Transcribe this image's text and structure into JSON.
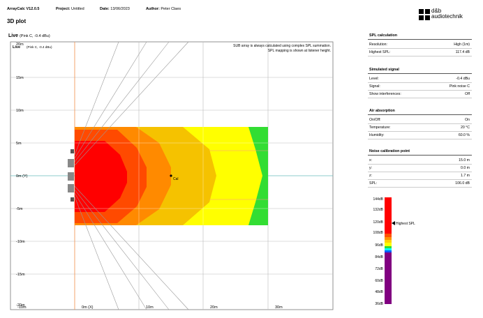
{
  "header": {
    "app_version": "ArrayCalc V12.0.5",
    "project_label": "Project:",
    "project_value": "Untitled",
    "date_label": "Date:",
    "date_value": "13/06/2023",
    "author_label": "Author:",
    "author_value": "Peter Claes"
  },
  "page_title": "3D plot",
  "logo": {
    "line1": "d&b",
    "line2": "audiotechnik"
  },
  "plot": {
    "title": "Live",
    "subtitle": "(Pink C, -0.4 dBu)",
    "inner_title": "Live",
    "inner_subtitle": "(Pink C, -0.4 dBu)",
    "note_line1": "SUB array is always calculated using complex SPL summation.",
    "note_line2": "SPL mapping is shown at listener height.",
    "y_ticks": [
      "20m",
      "15m",
      "10m",
      "5m",
      "0m (Y)",
      "-5m",
      "-10m",
      "-15m",
      "-20m"
    ],
    "x_ticks": [
      "-10m",
      "0m (X)",
      "10m",
      "20m",
      "30m"
    ],
    "cal_label": "Cal"
  },
  "spl_calculation": {
    "title": "SPL calculation",
    "rows": [
      {
        "label": "Resolution:",
        "value": "High (1m)"
      },
      {
        "label": "Highest SPL:",
        "value": "117.4 dB"
      }
    ]
  },
  "simulated_signal": {
    "title": "Simulated signal",
    "rows": [
      {
        "label": "Level:",
        "value": "-0.4 dBu"
      },
      {
        "label": "Signal:",
        "value": "Pink noise C"
      },
      {
        "label": "Show interferences:",
        "value": "Off"
      }
    ]
  },
  "air_absorption": {
    "title": "Air absorption",
    "rows": [
      {
        "label": "On/Off:",
        "value": "On"
      },
      {
        "label": "Temperature:",
        "value": "20 °C"
      },
      {
        "label": "Humidity:",
        "value": "60.0 %"
      }
    ]
  },
  "noise_calibration": {
    "title": "Noise calibration point",
    "rows": [
      {
        "label": "x:",
        "value": "15.0 m"
      },
      {
        "label": "y:",
        "value": "0.0 m"
      },
      {
        "label": "z:",
        "value": "1.7 m"
      },
      {
        "label": "SPL:",
        "value": "106.0 dB"
      }
    ]
  },
  "legend": {
    "ticks": [
      "144dB",
      "132dB",
      "120dB",
      "108dB",
      "96dB",
      "84dB",
      "72dB",
      "60dB",
      "48dB",
      "36dB"
    ],
    "highest_label": "Highest SPL"
  },
  "colors": {
    "red": "#ff0000",
    "orange_red": "#ff4a00",
    "orange": "#ff8a00",
    "yellow_orange": "#f5c200",
    "yellow": "#ffff00",
    "green": "#33dd33",
    "purple": "#800080",
    "blue": "#0060ff",
    "cyan": "#00ffff"
  }
}
